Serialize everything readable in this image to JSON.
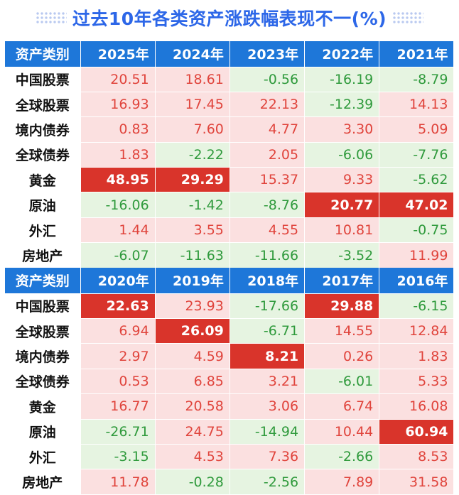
{
  "title": "过去10年各类资产涨跌幅表现不一(%)",
  "colors": {
    "header_bg": "#1e77d9",
    "positive_bg": "#fbe0e0",
    "positive_text": "#e0443c",
    "negative_bg": "#e6f4e1",
    "negative_text": "#2f9a3c",
    "highlight_bg": "#d9342b",
    "highlight_text": "#ffffff",
    "title": "#2d67e8"
  },
  "chart_data": {
    "type": "table",
    "title": "过去10年各类资产涨跌幅表现不一(%)",
    "row_header_label": "资产类别",
    "categories": [
      "中国股票",
      "全球股票",
      "境内债券",
      "全球债券",
      "黄金",
      "原油",
      "外汇",
      "房地产"
    ],
    "blocks": [
      {
        "years": [
          "2025年",
          "2024年",
          "2023年",
          "2022年",
          "2021年"
        ],
        "rows": [
          {
            "category": "中国股票",
            "values": [
              "20.51",
              "18.61",
              "-0.56",
              "-16.19",
              "-8.79"
            ],
            "highlight": -1
          },
          {
            "category": "全球股票",
            "values": [
              "16.93",
              "17.45",
              "22.13",
              "-12.39",
              "14.13"
            ],
            "highlight": 2
          },
          {
            "category": "境内债券",
            "values": [
              "0.83",
              "7.60",
              "4.77",
              "3.30",
              "5.09"
            ],
            "highlight": -1
          },
          {
            "category": "全球债券",
            "values": [
              "1.83",
              "-2.22",
              "2.05",
              "-6.06",
              "-7.76"
            ],
            "highlight": -1
          },
          {
            "category": "黄金",
            "values": [
              "48.95",
              "29.29",
              "15.37",
              "9.33",
              "-5.62"
            ],
            "highlight": [
              0,
              1
            ]
          },
          {
            "category": "原油",
            "values": [
              "-16.06",
              "-1.42",
              "-8.76",
              "20.77",
              "47.02"
            ],
            "highlight": [
              3,
              4
            ]
          },
          {
            "category": "外汇",
            "values": [
              "1.44",
              "3.55",
              "4.55",
              "10.81",
              "-0.75"
            ],
            "highlight": -1
          },
          {
            "category": "房地产",
            "values": [
              "-6.07",
              "-11.63",
              "-11.66",
              "-3.52",
              "11.99"
            ],
            "highlight": -1
          }
        ]
      },
      {
        "years": [
          "2020年",
          "2019年",
          "2018年",
          "2017年",
          "2016年"
        ],
        "rows": [
          {
            "category": "中国股票",
            "values": [
              "22.63",
              "23.93",
              "-17.66",
              "29.88",
              "-6.15"
            ],
            "highlight": [
              0,
              3
            ]
          },
          {
            "category": "全球股票",
            "values": [
              "6.94",
              "26.09",
              "-6.71",
              "14.55",
              "12.84"
            ],
            "highlight": [
              1
            ]
          },
          {
            "category": "境内债券",
            "values": [
              "2.97",
              "4.59",
              "8.21",
              "0.26",
              "1.83"
            ],
            "highlight": [
              2
            ]
          },
          {
            "category": "全球债券",
            "values": [
              "0.53",
              "6.85",
              "3.21",
              "-6.01",
              "5.33"
            ],
            "highlight": -1
          },
          {
            "category": "黄金",
            "values": [
              "16.77",
              "20.58",
              "3.06",
              "6.74",
              "16.08"
            ],
            "highlight": -1
          },
          {
            "category": "原油",
            "values": [
              "-26.71",
              "24.75",
              "-14.94",
              "10.44",
              "60.94"
            ],
            "highlight": [
              4
            ]
          },
          {
            "category": "外汇",
            "values": [
              "-3.15",
              "4.53",
              "7.36",
              "-2.66",
              "8.53"
            ],
            "highlight": -1
          },
          {
            "category": "房地产",
            "values": [
              "11.78",
              "-0.28",
              "-2.56",
              "7.89",
              "31.58"
            ],
            "highlight": -1
          }
        ]
      }
    ]
  }
}
